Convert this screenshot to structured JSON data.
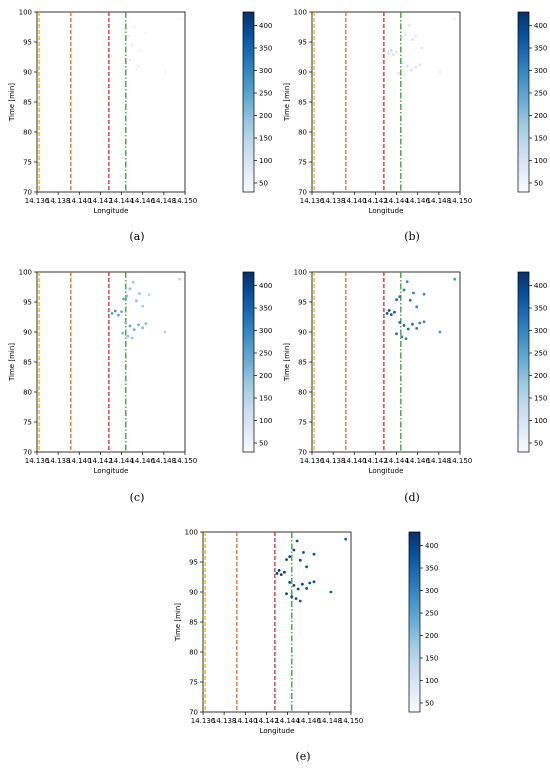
{
  "chart_data": [
    {
      "type": "scatter",
      "subfigure_label": "(a)",
      "xlabel": "Longitude",
      "ylabel": "Time [min]",
      "xlim": [
        14.136,
        14.15
      ],
      "ylim": [
        70,
        100
      ],
      "xticks": [
        "14.136",
        "14.138",
        "14.140",
        "14.142",
        "14.144",
        "14.146",
        "14.148",
        "14.150"
      ],
      "yticks": [
        "70",
        "75",
        "80",
        "85",
        "90",
        "95",
        "100"
      ],
      "colorbar": {
        "ticks": [
          "50",
          "100",
          "150",
          "200",
          "250",
          "300",
          "350",
          "400"
        ],
        "range": [
          30,
          430
        ]
      },
      "vlines": [
        {
          "x": 14.1362,
          "color": "#e8b400",
          "style": "dashed"
        },
        {
          "x": 14.1392,
          "color": "#e5681e",
          "style": "dashed"
        },
        {
          "x": 14.1428,
          "color": "#d62728",
          "style": "dashed"
        },
        {
          "x": 14.1444,
          "color": "#2ca02c",
          "style": "dashdot"
        }
      ],
      "points": [
        {
          "x": 14.1446,
          "y": 96.0,
          "v": 60
        },
        {
          "x": 14.1452,
          "y": 97.5,
          "v": 50
        },
        {
          "x": 14.145,
          "y": 94.5,
          "v": 60
        },
        {
          "x": 14.1458,
          "y": 93.5,
          "v": 50
        },
        {
          "x": 14.1448,
          "y": 92.0,
          "v": 60
        },
        {
          "x": 14.1456,
          "y": 91.0,
          "v": 60
        },
        {
          "x": 14.1454,
          "y": 90.5,
          "v": 50
        },
        {
          "x": 14.1462,
          "y": 96.5,
          "v": 50
        },
        {
          "x": 14.1481,
          "y": 90.0,
          "v": 50
        },
        {
          "x": 14.1495,
          "y": 98.8,
          "v": 45
        }
      ]
    },
    {
      "type": "scatter",
      "subfigure_label": "(b)",
      "xlabel": "Longitude",
      "ylabel": "Time [min]",
      "xlim": [
        14.136,
        14.15
      ],
      "ylim": [
        70,
        100
      ],
      "xticks": [
        "14.136",
        "14.138",
        "14.140",
        "14.142",
        "14.144",
        "14.146",
        "14.148",
        "14.150"
      ],
      "yticks": [
        "70",
        "75",
        "80",
        "85",
        "90",
        "95",
        "100"
      ],
      "colorbar": {
        "ticks": [
          "50",
          "100",
          "150",
          "200",
          "250",
          "300",
          "350",
          "400"
        ],
        "range": [
          30,
          430
        ]
      },
      "vlines": [
        {
          "x": 14.1362,
          "color": "#e8b400",
          "style": "dashed"
        },
        {
          "x": 14.1392,
          "color": "#e5681e",
          "style": "dashed"
        },
        {
          "x": 14.1428,
          "color": "#d62728",
          "style": "dashed"
        },
        {
          "x": 14.1444,
          "color": "#2ca02c",
          "style": "dashdot"
        }
      ],
      "points": [
        {
          "x": 14.1432,
          "y": 93.2,
          "v": 110
        },
        {
          "x": 14.1435,
          "y": 93.6,
          "v": 120
        },
        {
          "x": 14.1437,
          "y": 92.9,
          "v": 110
        },
        {
          "x": 14.144,
          "y": 93.3,
          "v": 100
        },
        {
          "x": 14.1445,
          "y": 95.8,
          "v": 100
        },
        {
          "x": 14.1448,
          "y": 96.2,
          "v": 90
        },
        {
          "x": 14.1452,
          "y": 97.8,
          "v": 80
        },
        {
          "x": 14.1455,
          "y": 95.4,
          "v": 90
        },
        {
          "x": 14.1458,
          "y": 96.0,
          "v": 80
        },
        {
          "x": 14.1446,
          "y": 91.5,
          "v": 100
        },
        {
          "x": 14.145,
          "y": 91.0,
          "v": 110
        },
        {
          "x": 14.1454,
          "y": 90.3,
          "v": 100
        },
        {
          "x": 14.1458,
          "y": 90.8,
          "v": 90
        },
        {
          "x": 14.1462,
          "y": 91.2,
          "v": 90
        },
        {
          "x": 14.1442,
          "y": 89.8,
          "v": 90
        },
        {
          "x": 14.1447,
          "y": 89.5,
          "v": 80
        },
        {
          "x": 14.1464,
          "y": 94.0,
          "v": 70
        },
        {
          "x": 14.1481,
          "y": 90.0,
          "v": 60
        },
        {
          "x": 14.1495,
          "y": 98.8,
          "v": 50
        }
      ]
    },
    {
      "type": "scatter",
      "subfigure_label": "(c)",
      "xlabel": "Longitude",
      "ylabel": "Time [min]",
      "xlim": [
        14.136,
        14.15
      ],
      "ylim": [
        70,
        100
      ],
      "xticks": [
        "14.136",
        "14.138",
        "14.140",
        "14.142",
        "14.144",
        "14.146",
        "14.148",
        "14.150"
      ],
      "yticks": [
        "70",
        "75",
        "80",
        "85",
        "90",
        "95",
        "100"
      ],
      "colorbar": {
        "ticks": [
          "50",
          "100",
          "150",
          "200",
          "250",
          "300",
          "350",
          "400"
        ],
        "range": [
          30,
          430
        ]
      },
      "vlines": [
        {
          "x": 14.1362,
          "color": "#e8b400",
          "style": "dashed"
        },
        {
          "x": 14.1392,
          "color": "#e5681e",
          "style": "dashed"
        },
        {
          "x": 14.1428,
          "color": "#d62728",
          "style": "dashed"
        },
        {
          "x": 14.1444,
          "color": "#2ca02c",
          "style": "dashdot"
        }
      ],
      "points": [
        {
          "x": 14.1431,
          "y": 93.1,
          "v": 260
        },
        {
          "x": 14.1434,
          "y": 93.5,
          "v": 270
        },
        {
          "x": 14.1437,
          "y": 92.8,
          "v": 250
        },
        {
          "x": 14.144,
          "y": 93.4,
          "v": 240
        },
        {
          "x": 14.1442,
          "y": 95.5,
          "v": 230
        },
        {
          "x": 14.1445,
          "y": 96.0,
          "v": 210
        },
        {
          "x": 14.1448,
          "y": 97.2,
          "v": 200
        },
        {
          "x": 14.1451,
          "y": 98.3,
          "v": 180
        },
        {
          "x": 14.1454,
          "y": 95.2,
          "v": 200
        },
        {
          "x": 14.1457,
          "y": 96.4,
          "v": 190
        },
        {
          "x": 14.146,
          "y": 94.3,
          "v": 170
        },
        {
          "x": 14.1444,
          "y": 91.5,
          "v": 220
        },
        {
          "x": 14.1448,
          "y": 91.0,
          "v": 240
        },
        {
          "x": 14.1452,
          "y": 90.4,
          "v": 230
        },
        {
          "x": 14.1456,
          "y": 91.2,
          "v": 220
        },
        {
          "x": 14.146,
          "y": 90.7,
          "v": 210
        },
        {
          "x": 14.1463,
          "y": 91.4,
          "v": 200
        },
        {
          "x": 14.1441,
          "y": 89.8,
          "v": 210
        },
        {
          "x": 14.1446,
          "y": 89.3,
          "v": 190
        },
        {
          "x": 14.145,
          "y": 89.0,
          "v": 180
        },
        {
          "x": 14.1466,
          "y": 96.2,
          "v": 160
        },
        {
          "x": 14.1481,
          "y": 90.0,
          "v": 150
        },
        {
          "x": 14.1495,
          "y": 98.8,
          "v": 140
        }
      ]
    },
    {
      "type": "scatter",
      "subfigure_label": "(d)",
      "xlabel": "Longitude",
      "ylabel": "Time [min]",
      "xlim": [
        14.136,
        14.15
      ],
      "ylim": [
        70,
        100
      ],
      "xticks": [
        "14.136",
        "14.138",
        "14.140",
        "14.142",
        "14.144",
        "14.146",
        "14.148",
        "14.150"
      ],
      "yticks": [
        "70",
        "75",
        "80",
        "85",
        "90",
        "95",
        "100"
      ],
      "colorbar": {
        "ticks": [
          "50",
          "100",
          "150",
          "200",
          "250",
          "300",
          "350",
          "400"
        ],
        "range": [
          30,
          430
        ]
      },
      "vlines": [
        {
          "x": 14.1362,
          "color": "#e8b400",
          "style": "dashed"
        },
        {
          "x": 14.1392,
          "color": "#e5681e",
          "style": "dashed"
        },
        {
          "x": 14.1428,
          "color": "#d62728",
          "style": "dashed"
        },
        {
          "x": 14.1444,
          "color": "#2ca02c",
          "style": "dashdot"
        }
      ],
      "points": [
        {
          "x": 14.1431,
          "y": 93.1,
          "v": 380
        },
        {
          "x": 14.1433,
          "y": 93.6,
          "v": 390
        },
        {
          "x": 14.1435,
          "y": 92.9,
          "v": 370
        },
        {
          "x": 14.1438,
          "y": 93.3,
          "v": 360
        },
        {
          "x": 14.144,
          "y": 95.4,
          "v": 340
        },
        {
          "x": 14.1443,
          "y": 95.9,
          "v": 330
        },
        {
          "x": 14.1447,
          "y": 97.0,
          "v": 320
        },
        {
          "x": 14.145,
          "y": 98.4,
          "v": 300
        },
        {
          "x": 14.1453,
          "y": 95.3,
          "v": 320
        },
        {
          "x": 14.1456,
          "y": 96.5,
          "v": 310
        },
        {
          "x": 14.1459,
          "y": 94.2,
          "v": 300
        },
        {
          "x": 14.1443,
          "y": 91.6,
          "v": 340
        },
        {
          "x": 14.1447,
          "y": 91.1,
          "v": 350
        },
        {
          "x": 14.1451,
          "y": 90.5,
          "v": 340
        },
        {
          "x": 14.1455,
          "y": 91.3,
          "v": 330
        },
        {
          "x": 14.1459,
          "y": 90.6,
          "v": 320
        },
        {
          "x": 14.1462,
          "y": 91.5,
          "v": 310
        },
        {
          "x": 14.144,
          "y": 89.7,
          "v": 330
        },
        {
          "x": 14.1445,
          "y": 89.2,
          "v": 310
        },
        {
          "x": 14.1449,
          "y": 88.9,
          "v": 300
        },
        {
          "x": 14.1466,
          "y": 96.3,
          "v": 290
        },
        {
          "x": 14.1466,
          "y": 91.7,
          "v": 300
        },
        {
          "x": 14.1481,
          "y": 90.0,
          "v": 280
        },
        {
          "x": 14.1495,
          "y": 98.8,
          "v": 270
        }
      ]
    },
    {
      "type": "scatter",
      "subfigure_label": "(e)",
      "xlabel": "Longitude",
      "ylabel": "Time [min]",
      "xlim": [
        14.136,
        14.15
      ],
      "ylim": [
        70,
        100
      ],
      "xticks": [
        "14.136",
        "14.138",
        "14.140",
        "14.142",
        "14.144",
        "14.146",
        "14.148",
        "14.150"
      ],
      "yticks": [
        "70",
        "75",
        "80",
        "85",
        "90",
        "95",
        "100"
      ],
      "colorbar": {
        "ticks": [
          "50",
          "100",
          "150",
          "200",
          "250",
          "300",
          "350",
          "400"
        ],
        "range": [
          30,
          430
        ]
      },
      "vlines": [
        {
          "x": 14.1362,
          "color": "#e8b400",
          "style": "dashed"
        },
        {
          "x": 14.1392,
          "color": "#e5681e",
          "style": "dashed"
        },
        {
          "x": 14.1428,
          "color": "#d62728",
          "style": "dashed"
        },
        {
          "x": 14.1444,
          "color": "#2ca02c",
          "style": "dashdot"
        }
      ],
      "points": [
        {
          "x": 14.143,
          "y": 93.1,
          "v": 420
        },
        {
          "x": 14.1432,
          "y": 93.6,
          "v": 425
        },
        {
          "x": 14.1434,
          "y": 92.9,
          "v": 415
        },
        {
          "x": 14.1437,
          "y": 93.3,
          "v": 410
        },
        {
          "x": 14.1439,
          "y": 95.4,
          "v": 400
        },
        {
          "x": 14.1442,
          "y": 95.9,
          "v": 395
        },
        {
          "x": 14.1446,
          "y": 97.0,
          "v": 390
        },
        {
          "x": 14.1449,
          "y": 98.5,
          "v": 380
        },
        {
          "x": 14.1452,
          "y": 95.3,
          "v": 390
        },
        {
          "x": 14.1455,
          "y": 96.6,
          "v": 385
        },
        {
          "x": 14.1458,
          "y": 94.2,
          "v": 380
        },
        {
          "x": 14.1442,
          "y": 91.6,
          "v": 400
        },
        {
          "x": 14.1446,
          "y": 91.1,
          "v": 405
        },
        {
          "x": 14.145,
          "y": 90.5,
          "v": 400
        },
        {
          "x": 14.1454,
          "y": 91.3,
          "v": 395
        },
        {
          "x": 14.1458,
          "y": 90.6,
          "v": 390
        },
        {
          "x": 14.1461,
          "y": 91.5,
          "v": 385
        },
        {
          "x": 14.1439,
          "y": 89.7,
          "v": 395
        },
        {
          "x": 14.1444,
          "y": 89.2,
          "v": 390
        },
        {
          "x": 14.1448,
          "y": 88.9,
          "v": 380
        },
        {
          "x": 14.1465,
          "y": 96.3,
          "v": 375
        },
        {
          "x": 14.1465,
          "y": 91.7,
          "v": 380
        },
        {
          "x": 14.1452,
          "y": 88.5,
          "v": 370
        },
        {
          "x": 14.1481,
          "y": 90.0,
          "v": 365
        },
        {
          "x": 14.1495,
          "y": 98.8,
          "v": 360
        }
      ]
    }
  ]
}
